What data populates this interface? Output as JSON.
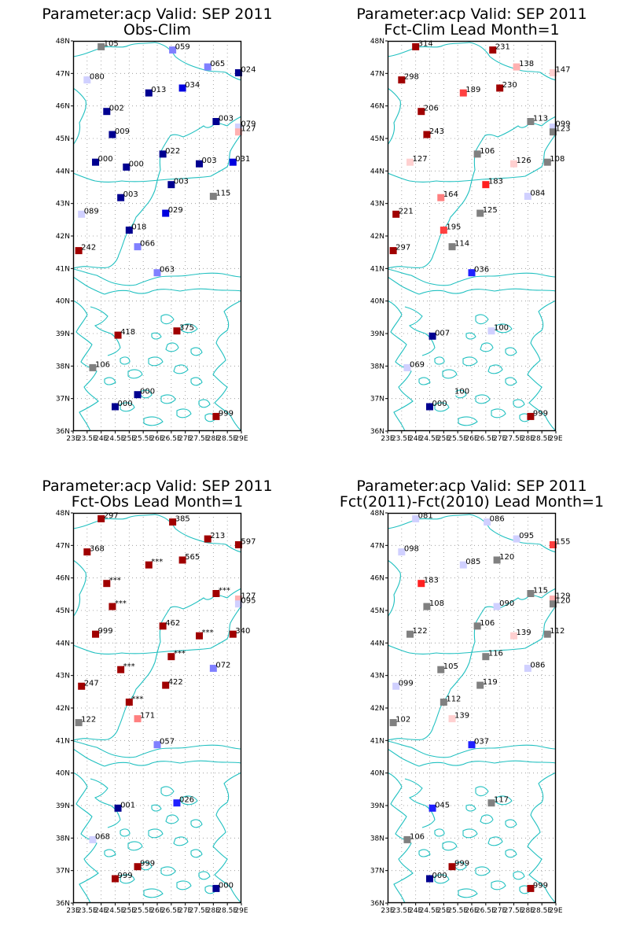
{
  "panels": [
    {
      "title_line1": "Parameter:acp Valid: SEP 2011",
      "title_line2": "Obs-Clim",
      "stations": [
        {
          "lon": 24.0,
          "lat": 47.82,
          "color": "#808080",
          "label": "105"
        },
        {
          "lon": 26.55,
          "lat": 47.72,
          "color": "#8080ff",
          "label": "059"
        },
        {
          "lon": 27.8,
          "lat": 47.2,
          "color": "#8080ff",
          "label": "065"
        },
        {
          "lon": 28.9,
          "lat": 47.02,
          "color": "#000090",
          "label": "024"
        },
        {
          "lon": 23.5,
          "lat": 46.8,
          "color": "#d0d0ff",
          "label": "080"
        },
        {
          "lon": 25.7,
          "lat": 46.4,
          "color": "#000090",
          "label": "013"
        },
        {
          "lon": 26.9,
          "lat": 46.55,
          "color": "#0000e0",
          "label": "034"
        },
        {
          "lon": 24.2,
          "lat": 45.83,
          "color": "#000090",
          "label": "002"
        },
        {
          "lon": 28.1,
          "lat": 45.52,
          "color": "#000090",
          "label": "003"
        },
        {
          "lon": 28.9,
          "lat": 45.35,
          "color": "#d0d0ff",
          "label": "079"
        },
        {
          "lon": 28.9,
          "lat": 45.2,
          "color": "#ffb0b0",
          "label": "127"
        },
        {
          "lon": 24.4,
          "lat": 45.12,
          "color": "#000090",
          "label": "009"
        },
        {
          "lon": 26.2,
          "lat": 44.52,
          "color": "#000090",
          "label": "022"
        },
        {
          "lon": 23.8,
          "lat": 44.27,
          "color": "#000090",
          "label": "000"
        },
        {
          "lon": 24.9,
          "lat": 44.12,
          "color": "#000090",
          "label": "000"
        },
        {
          "lon": 27.5,
          "lat": 44.22,
          "color": "#000090",
          "label": "003"
        },
        {
          "lon": 28.7,
          "lat": 44.27,
          "color": "#0000e0",
          "label": "031"
        },
        {
          "lon": 26.5,
          "lat": 43.58,
          "color": "#000090",
          "label": "003"
        },
        {
          "lon": 24.7,
          "lat": 43.18,
          "color": "#000090",
          "label": "003"
        },
        {
          "lon": 28.0,
          "lat": 43.22,
          "color": "#808080",
          "label": "115"
        },
        {
          "lon": 23.3,
          "lat": 42.67,
          "color": "#d0d0ff",
          "label": "089"
        },
        {
          "lon": 26.3,
          "lat": 42.7,
          "color": "#0000e0",
          "label": "029"
        },
        {
          "lon": 25.0,
          "lat": 42.18,
          "color": "#000090",
          "label": "018"
        },
        {
          "lon": 23.2,
          "lat": 41.55,
          "color": "#a00000",
          "label": "242"
        },
        {
          "lon": 25.3,
          "lat": 41.67,
          "color": "#8080ff",
          "label": "066"
        },
        {
          "lon": 26.0,
          "lat": 40.87,
          "color": "#8080ff",
          "label": "063"
        },
        {
          "lon": 24.6,
          "lat": 38.95,
          "color": "#a00000",
          "label": "418"
        },
        {
          "lon": 26.7,
          "lat": 39.08,
          "color": "#a00000",
          "label": "375"
        },
        {
          "lon": 23.7,
          "lat": 37.95,
          "color": "#808080",
          "label": "106"
        },
        {
          "lon": 25.3,
          "lat": 37.12,
          "color": "#000090",
          "label": "000"
        },
        {
          "lon": 24.5,
          "lat": 36.75,
          "color": "#000090",
          "label": "000"
        },
        {
          "lon": 28.1,
          "lat": 36.45,
          "color": "#a00000",
          "label": "999"
        }
      ]
    },
    {
      "title_line1": "Parameter:acp Valid: SEP 2011",
      "title_line2": "Fct-Clim Lead Month=1",
      "stations": [
        {
          "lon": 24.0,
          "lat": 47.82,
          "color": "#a00000",
          "label": "314"
        },
        {
          "lon": 26.75,
          "lat": 47.72,
          "color": "#a00000",
          "label": "231"
        },
        {
          "lon": 27.6,
          "lat": 47.2,
          "color": "#ffb0b0",
          "label": "138"
        },
        {
          "lon": 28.9,
          "lat": 47.02,
          "color": "#ffd0d0",
          "label": "147"
        },
        {
          "lon": 23.5,
          "lat": 46.8,
          "color": "#a00000",
          "label": "298"
        },
        {
          "lon": 25.7,
          "lat": 46.4,
          "color": "#ff4040",
          "label": "189"
        },
        {
          "lon": 27.0,
          "lat": 46.55,
          "color": "#a00000",
          "label": "230"
        },
        {
          "lon": 24.2,
          "lat": 45.83,
          "color": "#a00000",
          "label": "206"
        },
        {
          "lon": 28.1,
          "lat": 45.52,
          "color": "#808080",
          "label": "113"
        },
        {
          "lon": 28.9,
          "lat": 45.35,
          "color": "#d0d0ff",
          "label": "099"
        },
        {
          "lon": 28.9,
          "lat": 45.2,
          "color": "#808080",
          "label": "123"
        },
        {
          "lon": 24.4,
          "lat": 45.12,
          "color": "#a00000",
          "label": "243"
        },
        {
          "lon": 26.2,
          "lat": 44.52,
          "color": "#808080",
          "label": "106"
        },
        {
          "lon": 23.8,
          "lat": 44.27,
          "color": "#ffd0d0",
          "label": "127"
        },
        {
          "lon": 27.5,
          "lat": 44.22,
          "color": "#ffd0d0",
          "label": "126"
        },
        {
          "lon": 28.7,
          "lat": 44.27,
          "color": "#808080",
          "label": "108"
        },
        {
          "lon": 26.5,
          "lat": 43.58,
          "color": "#ff2020",
          "label": "183"
        },
        {
          "lon": 24.9,
          "lat": 43.18,
          "color": "#ff8080",
          "label": "164"
        },
        {
          "lon": 28.0,
          "lat": 43.22,
          "color": "#d0d0ff",
          "label": "084"
        },
        {
          "lon": 23.3,
          "lat": 42.67,
          "color": "#a00000",
          "label": "221"
        },
        {
          "lon": 26.3,
          "lat": 42.7,
          "color": "#808080",
          "label": "125"
        },
        {
          "lon": 25.0,
          "lat": 42.18,
          "color": "#ff4040",
          "label": "195"
        },
        {
          "lon": 23.2,
          "lat": 41.55,
          "color": "#a00000",
          "label": "297"
        },
        {
          "lon": 25.3,
          "lat": 41.67,
          "color": "#808080",
          "label": "114"
        },
        {
          "lon": 26.0,
          "lat": 40.87,
          "color": "#2020ff",
          "label": "036"
        },
        {
          "lon": 24.6,
          "lat": 38.92,
          "color": "#000090",
          "label": "007"
        },
        {
          "lon": 26.7,
          "lat": 39.08,
          "color": "#d0d0ff",
          "label": "100"
        },
        {
          "lon": 23.7,
          "lat": 37.95,
          "color": "#d0d0ff",
          "label": "069"
        },
        {
          "lon": 25.3,
          "lat": 37.12,
          "color": "#ffffff",
          "label": "100"
        },
        {
          "lon": 24.5,
          "lat": 36.75,
          "color": "#000090",
          "label": "000"
        },
        {
          "lon": 28.1,
          "lat": 36.45,
          "color": "#a00000",
          "label": "999"
        }
      ]
    },
    {
      "title_line1": "Parameter:acp Valid: SEP 2011",
      "title_line2": "Fct-Obs Lead Month=1",
      "stations": [
        {
          "lon": 24.0,
          "lat": 47.82,
          "color": "#a00000",
          "label": "297"
        },
        {
          "lon": 26.55,
          "lat": 47.72,
          "color": "#a00000",
          "label": "385"
        },
        {
          "lon": 27.8,
          "lat": 47.2,
          "color": "#a00000",
          "label": "213"
        },
        {
          "lon": 28.9,
          "lat": 47.02,
          "color": "#a00000",
          "label": "597"
        },
        {
          "lon": 23.5,
          "lat": 46.8,
          "color": "#a00000",
          "label": "368"
        },
        {
          "lon": 25.7,
          "lat": 46.4,
          "color": "#a00000",
          "label": "***"
        },
        {
          "lon": 26.9,
          "lat": 46.55,
          "color": "#a00000",
          "label": "565"
        },
        {
          "lon": 24.2,
          "lat": 45.83,
          "color": "#a00000",
          "label": "***"
        },
        {
          "lon": 28.1,
          "lat": 45.52,
          "color": "#a00000",
          "label": "***"
        },
        {
          "lon": 28.9,
          "lat": 45.35,
          "color": "#ffb0b0",
          "label": "127"
        },
        {
          "lon": 28.9,
          "lat": 45.2,
          "color": "#d0d0ff",
          "label": "095"
        },
        {
          "lon": 24.4,
          "lat": 45.12,
          "color": "#a00000",
          "label": "***"
        },
        {
          "lon": 26.2,
          "lat": 44.52,
          "color": "#a00000",
          "label": "462"
        },
        {
          "lon": 23.8,
          "lat": 44.27,
          "color": "#a00000",
          "label": "999"
        },
        {
          "lon": 27.5,
          "lat": 44.22,
          "color": "#a00000",
          "label": "***"
        },
        {
          "lon": 28.7,
          "lat": 44.27,
          "color": "#a00000",
          "label": "340"
        },
        {
          "lon": 26.5,
          "lat": 43.58,
          "color": "#a00000",
          "label": "***"
        },
        {
          "lon": 24.7,
          "lat": 43.18,
          "color": "#a00000",
          "label": "***"
        },
        {
          "lon": 28.0,
          "lat": 43.22,
          "color": "#8080ff",
          "label": "072"
        },
        {
          "lon": 23.3,
          "lat": 42.67,
          "color": "#a00000",
          "label": "247"
        },
        {
          "lon": 26.3,
          "lat": 42.7,
          "color": "#a00000",
          "label": "422"
        },
        {
          "lon": 25.0,
          "lat": 42.18,
          "color": "#a00000",
          "label": "***"
        },
        {
          "lon": 23.2,
          "lat": 41.55,
          "color": "#808080",
          "label": "122"
        },
        {
          "lon": 25.3,
          "lat": 41.67,
          "color": "#ff8080",
          "label": "171"
        },
        {
          "lon": 26.0,
          "lat": 40.87,
          "color": "#8080ff",
          "label": "057"
        },
        {
          "lon": 24.6,
          "lat": 38.92,
          "color": "#000090",
          "label": "001"
        },
        {
          "lon": 26.7,
          "lat": 39.08,
          "color": "#2020ff",
          "label": "026"
        },
        {
          "lon": 23.7,
          "lat": 37.95,
          "color": "#d0d0ff",
          "label": "068"
        },
        {
          "lon": 25.3,
          "lat": 37.12,
          "color": "#a00000",
          "label": "999"
        },
        {
          "lon": 24.5,
          "lat": 36.75,
          "color": "#a00000",
          "label": "999"
        },
        {
          "lon": 28.1,
          "lat": 36.45,
          "color": "#000090",
          "label": "000"
        }
      ]
    },
    {
      "title_line1": "Parameter:acp Valid: SEP 2011",
      "title_line2": "Fct(2011)-Fct(2010) Lead Month=1",
      "stations": [
        {
          "lon": 24.0,
          "lat": 47.82,
          "color": "#d0d0ff",
          "label": "081"
        },
        {
          "lon": 26.55,
          "lat": 47.72,
          "color": "#d0d0ff",
          "label": "086"
        },
        {
          "lon": 27.6,
          "lat": 47.2,
          "color": "#d0d0ff",
          "label": "095"
        },
        {
          "lon": 28.9,
          "lat": 47.02,
          "color": "#ff4040",
          "label": "155"
        },
        {
          "lon": 23.5,
          "lat": 46.8,
          "color": "#d0d0ff",
          "label": "098"
        },
        {
          "lon": 25.7,
          "lat": 46.4,
          "color": "#d0d0ff",
          "label": "085"
        },
        {
          "lon": 26.9,
          "lat": 46.55,
          "color": "#808080",
          "label": "120"
        },
        {
          "lon": 24.2,
          "lat": 45.83,
          "color": "#ff2020",
          "label": "183"
        },
        {
          "lon": 28.1,
          "lat": 45.52,
          "color": "#808080",
          "label": "115"
        },
        {
          "lon": 28.9,
          "lat": 45.35,
          "color": "#ffb0b0",
          "label": "129"
        },
        {
          "lon": 28.9,
          "lat": 45.2,
          "color": "#808080",
          "label": "120"
        },
        {
          "lon": 24.4,
          "lat": 45.12,
          "color": "#808080",
          "label": "108"
        },
        {
          "lon": 26.2,
          "lat": 44.52,
          "color": "#808080",
          "label": "106"
        },
        {
          "lon": 26.9,
          "lat": 45.12,
          "color": "#d0d0ff",
          "label": "090"
        },
        {
          "lon": 23.8,
          "lat": 44.27,
          "color": "#808080",
          "label": "122"
        },
        {
          "lon": 27.5,
          "lat": 44.22,
          "color": "#ffd0d0",
          "label": "139"
        },
        {
          "lon": 28.7,
          "lat": 44.27,
          "color": "#808080",
          "label": "112"
        },
        {
          "lon": 26.5,
          "lat": 43.58,
          "color": "#808080",
          "label": "116"
        },
        {
          "lon": 24.9,
          "lat": 43.18,
          "color": "#808080",
          "label": "105"
        },
        {
          "lon": 28.0,
          "lat": 43.22,
          "color": "#d0d0ff",
          "label": "086"
        },
        {
          "lon": 23.3,
          "lat": 42.67,
          "color": "#d0d0ff",
          "label": "099"
        },
        {
          "lon": 26.3,
          "lat": 42.7,
          "color": "#808080",
          "label": "119"
        },
        {
          "lon": 25.0,
          "lat": 42.18,
          "color": "#808080",
          "label": "112"
        },
        {
          "lon": 23.2,
          "lat": 41.55,
          "color": "#808080",
          "label": "102"
        },
        {
          "lon": 25.3,
          "lat": 41.67,
          "color": "#ffd0d0",
          "label": "139"
        },
        {
          "lon": 26.0,
          "lat": 40.87,
          "color": "#2020ff",
          "label": "037"
        },
        {
          "lon": 24.6,
          "lat": 38.92,
          "color": "#2020ff",
          "label": "045"
        },
        {
          "lon": 26.7,
          "lat": 39.08,
          "color": "#808080",
          "label": "117"
        },
        {
          "lon": 23.7,
          "lat": 37.95,
          "color": "#808080",
          "label": "106"
        },
        {
          "lon": 25.3,
          "lat": 37.12,
          "color": "#a00000",
          "label": "999"
        },
        {
          "lon": 24.5,
          "lat": 36.75,
          "color": "#000090",
          "label": "000"
        },
        {
          "lon": 28.1,
          "lat": 36.45,
          "color": "#a00000",
          "label": "999"
        }
      ]
    }
  ],
  "axes": {
    "lat_labels": [
      "36N",
      "37N",
      "38N",
      "39N",
      "40N",
      "41N",
      "42N",
      "43N",
      "44N",
      "45N",
      "46N",
      "47N",
      "48N"
    ],
    "lon_labels": [
      "23E",
      "23.5E",
      "24E",
      "24.5E",
      "25E",
      "25.5E",
      "26E",
      "26.5E",
      "27E",
      "27.5E",
      "28E",
      "28.5E",
      "29E"
    ],
    "lat_range": [
      36,
      48
    ],
    "lon_range": [
      23,
      29
    ]
  },
  "colors": {
    "coastline": "#20c0c0",
    "grid": "#909090",
    "frame": "#000000"
  }
}
